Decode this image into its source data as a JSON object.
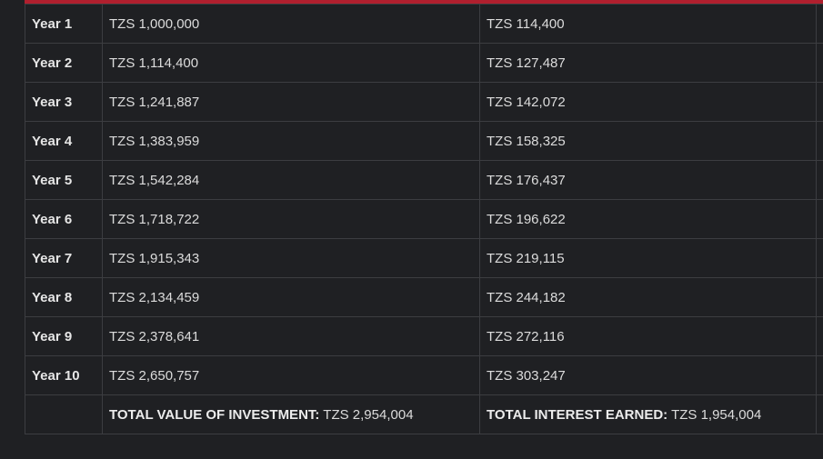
{
  "accent_color": "#b01f2e",
  "rows": [
    {
      "year": "Year 1",
      "value": "TZS 1,000,000",
      "interest": "TZS 114,400"
    },
    {
      "year": "Year 2",
      "value": "TZS 1,114,400",
      "interest": "TZS 127,487"
    },
    {
      "year": "Year 3",
      "value": "TZS 1,241,887",
      "interest": "TZS 142,072"
    },
    {
      "year": "Year 4",
      "value": "TZS 1,383,959",
      "interest": "TZS 158,325"
    },
    {
      "year": "Year 5",
      "value": "TZS 1,542,284",
      "interest": "TZS 176,437"
    },
    {
      "year": "Year 6",
      "value": "TZS 1,718,722",
      "interest": "TZS 196,622"
    },
    {
      "year": "Year 7",
      "value": "TZS 1,915,343",
      "interest": "TZS 219,115"
    },
    {
      "year": "Year 8",
      "value": "TZS 2,134,459",
      "interest": "TZS 244,182"
    },
    {
      "year": "Year 9",
      "value": "TZS 2,378,641",
      "interest": "TZS 272,116"
    },
    {
      "year": "Year 10",
      "value": "TZS 2,650,757",
      "interest": "TZS 303,247"
    }
  ],
  "totals": {
    "investment_label": "TOTAL VALUE OF INVESTMENT:",
    "investment_value": " TZS 2,954,004",
    "interest_label": "TOTAL INTEREST EARNED:",
    "interest_value": " TZS 1,954,004"
  }
}
